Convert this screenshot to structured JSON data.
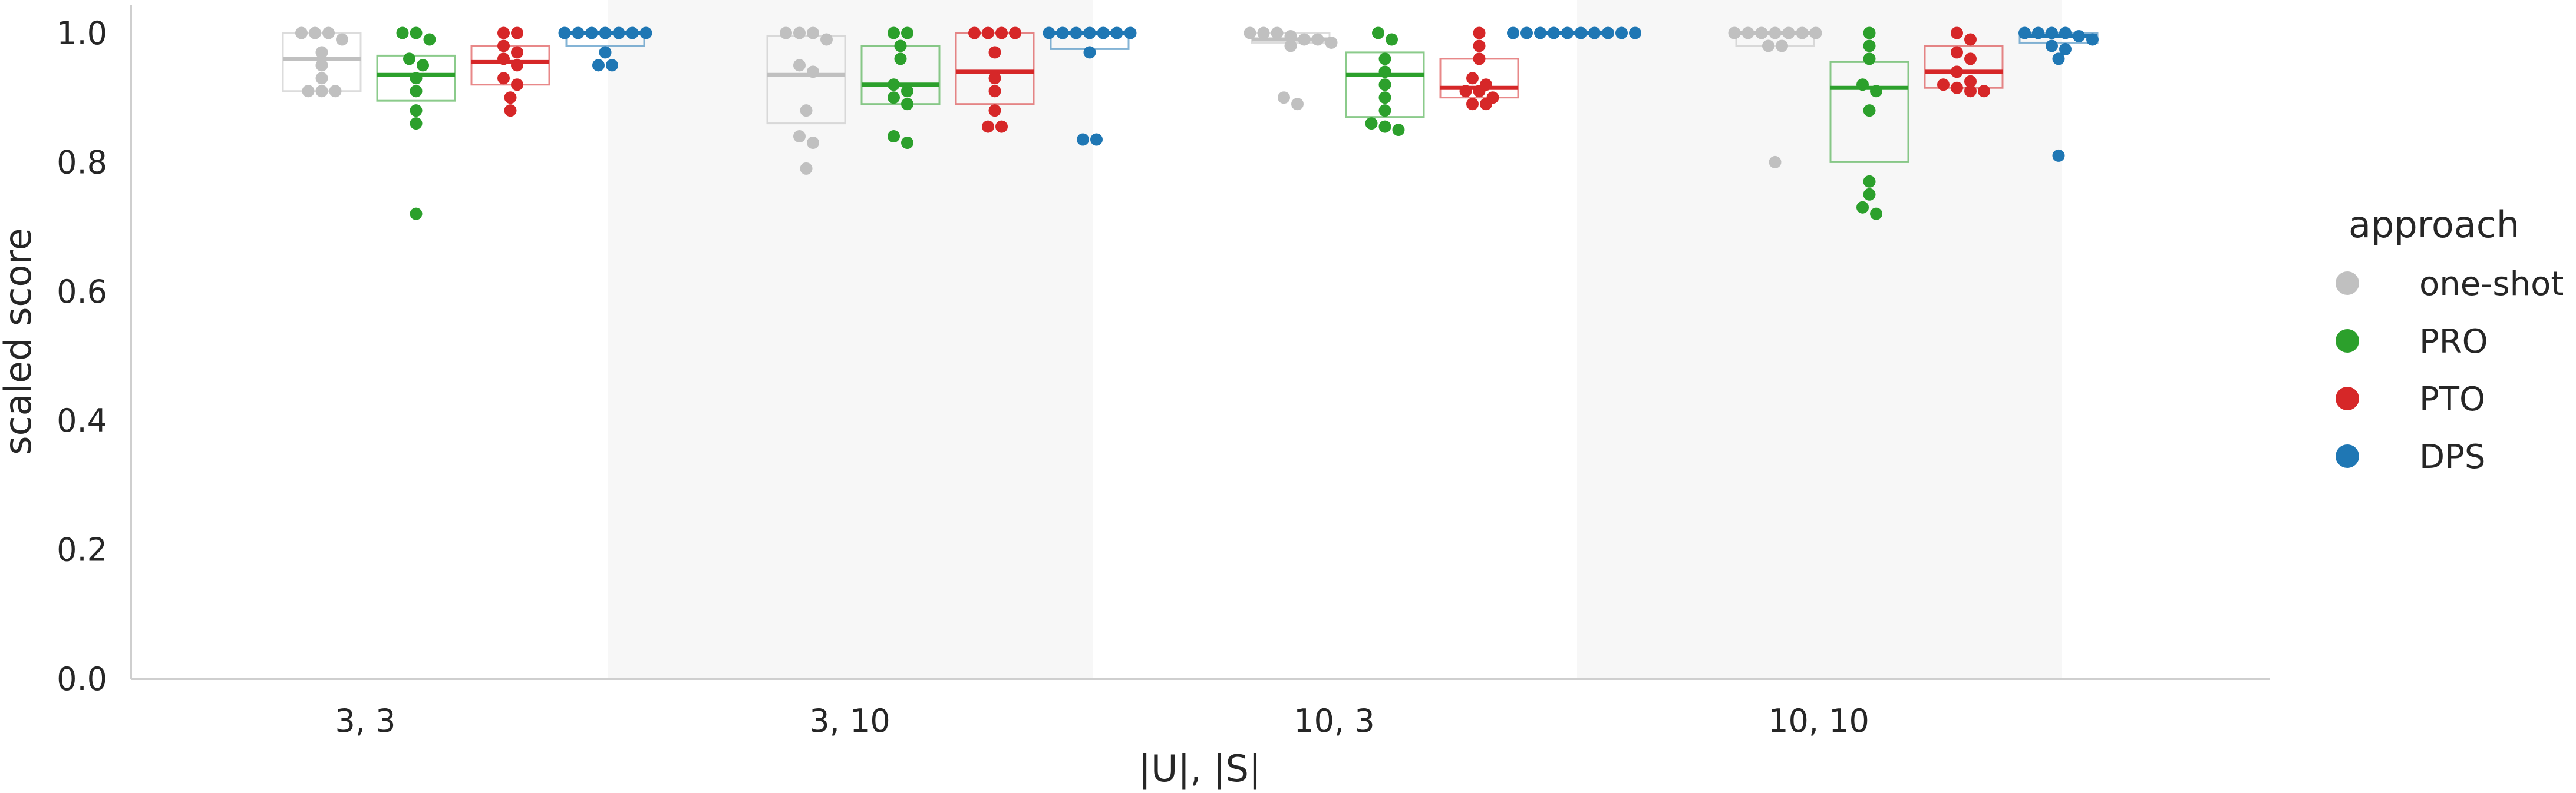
{
  "chart_data": {
    "type": "box",
    "xlabel": "|U|, |S|",
    "ylabel": "scaled score",
    "ylim": [
      0.0,
      1.0
    ],
    "yticks": [
      "0.0",
      "0.2",
      "0.4",
      "0.6",
      "0.8",
      "1.0"
    ],
    "categories": [
      "3, 3",
      "3, 10",
      "10, 3",
      "10, 10"
    ],
    "legend": {
      "title": "approach",
      "placement": "right",
      "entries": [
        "one-shot",
        "PRO",
        "PTO",
        "DPS"
      ]
    },
    "colors": {
      "one-shot": "#c0c0c0",
      "PRO": "#2ca02c",
      "PTO": "#d62728",
      "DPS": "#1f77b4"
    },
    "series": [
      {
        "name": "one-shot",
        "groups": [
          {
            "q1": 0.91,
            "median": 0.96,
            "q3": 1.0,
            "points": [
              1.0,
              1.0,
              1.0,
              0.99,
              0.97,
              0.95,
              0.93,
              0.91,
              0.91,
              0.91
            ]
          },
          {
            "q1": 0.86,
            "median": 0.935,
            "q3": 0.995,
            "points": [
              1.0,
              1.0,
              1.0,
              0.99,
              0.95,
              0.94,
              0.88,
              0.84,
              0.83,
              0.79
            ]
          },
          {
            "q1": 0.985,
            "median": 0.99,
            "q3": 1.0,
            "points": [
              1.0,
              1.0,
              1.0,
              0.995,
              0.99,
              0.99,
              0.985,
              0.98,
              0.9,
              0.89
            ]
          },
          {
            "q1": 0.98,
            "median": 1.0,
            "q3": 1.0,
            "points": [
              1.0,
              1.0,
              1.0,
              1.0,
              1.0,
              1.0,
              1.0,
              0.98,
              0.98,
              0.8
            ]
          }
        ]
      },
      {
        "name": "PRO",
        "groups": [
          {
            "q1": 0.895,
            "median": 0.935,
            "q3": 0.965,
            "points": [
              1.0,
              1.0,
              0.99,
              0.96,
              0.95,
              0.93,
              0.91,
              0.88,
              0.86,
              0.72
            ]
          },
          {
            "q1": 0.89,
            "median": 0.92,
            "q3": 0.98,
            "points": [
              1.0,
              1.0,
              0.98,
              0.96,
              0.92,
              0.91,
              0.9,
              0.89,
              0.84,
              0.83
            ]
          },
          {
            "q1": 0.87,
            "median": 0.935,
            "q3": 0.97,
            "points": [
              1.0,
              0.99,
              0.96,
              0.94,
              0.92,
              0.9,
              0.88,
              0.86,
              0.855,
              0.85
            ]
          },
          {
            "q1": 0.8,
            "median": 0.915,
            "q3": 0.955,
            "points": [
              1.0,
              0.98,
              0.96,
              0.92,
              0.91,
              0.88,
              0.77,
              0.75,
              0.73,
              0.72
            ]
          }
        ]
      },
      {
        "name": "PTO",
        "groups": [
          {
            "q1": 0.92,
            "median": 0.955,
            "q3": 0.98,
            "points": [
              1.0,
              1.0,
              0.98,
              0.97,
              0.96,
              0.95,
              0.93,
              0.92,
              0.9,
              0.88
            ]
          },
          {
            "q1": 0.89,
            "median": 0.94,
            "q3": 1.0,
            "points": [
              1.0,
              1.0,
              1.0,
              1.0,
              0.97,
              0.93,
              0.91,
              0.88,
              0.855,
              0.855
            ]
          },
          {
            "q1": 0.9,
            "median": 0.915,
            "q3": 0.96,
            "points": [
              1.0,
              0.98,
              0.96,
              0.93,
              0.92,
              0.91,
              0.91,
              0.9,
              0.89,
              0.89
            ]
          },
          {
            "q1": 0.915,
            "median": 0.94,
            "q3": 0.98,
            "points": [
              1.0,
              0.99,
              0.97,
              0.96,
              0.94,
              0.925,
              0.92,
              0.915,
              0.91,
              0.91
            ]
          }
        ]
      },
      {
        "name": "DPS",
        "groups": [
          {
            "q1": 0.98,
            "median": 1.0,
            "q3": 1.0,
            "points": [
              1.0,
              1.0,
              1.0,
              1.0,
              1.0,
              1.0,
              1.0,
              0.97,
              0.95,
              0.95
            ]
          },
          {
            "q1": 0.975,
            "median": 1.0,
            "q3": 1.0,
            "points": [
              1.0,
              1.0,
              1.0,
              1.0,
              1.0,
              1.0,
              1.0,
              0.97,
              0.835,
              0.835
            ]
          },
          {
            "q1": 1.0,
            "median": 1.0,
            "q3": 1.0,
            "points": [
              1.0,
              1.0,
              1.0,
              1.0,
              1.0,
              1.0,
              1.0,
              1.0,
              1.0,
              1.0
            ]
          },
          {
            "q1": 0.985,
            "median": 0.995,
            "q3": 1.0,
            "points": [
              1.0,
              1.0,
              1.0,
              1.0,
              0.995,
              0.99,
              0.98,
              0.975,
              0.96,
              0.81
            ]
          }
        ]
      }
    ],
    "grid": false,
    "alternating_category_shading": true
  }
}
